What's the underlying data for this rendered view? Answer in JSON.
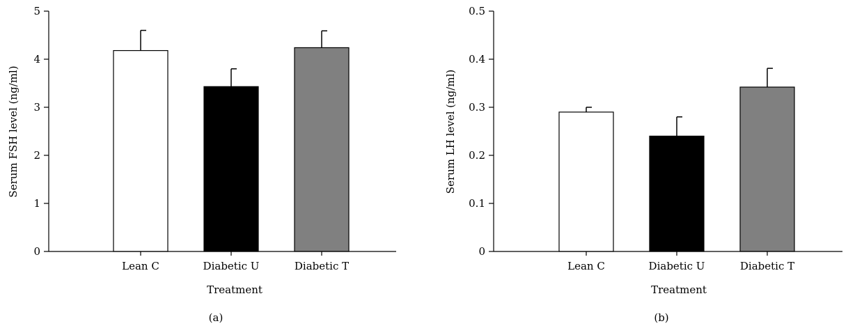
{
  "chart_data": [
    {
      "type": "bar",
      "panel_label": "(a)",
      "categories": [
        "Lean C",
        "Diabetic U",
        "Diabetic T"
      ],
      "values": [
        4.18,
        3.43,
        4.24
      ],
      "errors": [
        0.42,
        0.37,
        0.35
      ],
      "colors": [
        "#ffffff",
        "#000000",
        "#808080"
      ],
      "xlabel": "Treatment",
      "ylabel": "Serum FSH level (ng/ml)",
      "ylim": [
        0,
        5
      ],
      "yticks": [
        "0",
        "1",
        "2",
        "3",
        "4",
        "5"
      ],
      "grid": false
    },
    {
      "type": "bar",
      "panel_label": "(b)",
      "categories": [
        "Lean C",
        "Diabetic U",
        "Diabetic T"
      ],
      "values": [
        0.29,
        0.24,
        0.342
      ],
      "errors": [
        0.01,
        0.04,
        0.039
      ],
      "colors": [
        "#ffffff",
        "#000000",
        "#808080"
      ],
      "xlabel": "Treatment",
      "ylabel": "Serum LH level (ng/ml)",
      "ylim": [
        0,
        0.5
      ],
      "yticks": [
        "0",
        "0.1",
        "0.2",
        "0.3",
        "0.4",
        "0.5"
      ],
      "grid": false
    }
  ]
}
